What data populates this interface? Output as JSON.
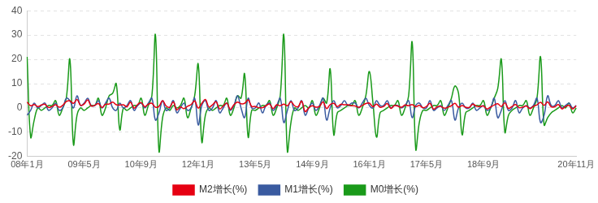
{
  "chart_data": {
    "type": "line",
    "categories": [
      "08年1月",
      null,
      null,
      null,
      null,
      null,
      null,
      null,
      null,
      null,
      null,
      null,
      null,
      null,
      null,
      null,
      "09年5月",
      null,
      null,
      null,
      null,
      null,
      null,
      null,
      null,
      null,
      null,
      null,
      null,
      null,
      null,
      null,
      "10年9月",
      null,
      null,
      null,
      null,
      null,
      null,
      null,
      null,
      null,
      null,
      null,
      null,
      null,
      null,
      null,
      "12年1月",
      null,
      null,
      null,
      null,
      null,
      null,
      null,
      null,
      null,
      null,
      null,
      null,
      null,
      null,
      null,
      "13年5月",
      null,
      null,
      null,
      null,
      null,
      null,
      null,
      null,
      null,
      null,
      null,
      null,
      null,
      null,
      null,
      "14年9月",
      null,
      null,
      null,
      null,
      null,
      null,
      null,
      null,
      null,
      null,
      null,
      null,
      null,
      null,
      null,
      "16年1月",
      null,
      null,
      null,
      null,
      null,
      null,
      null,
      null,
      null,
      null,
      null,
      null,
      null,
      null,
      null,
      "17年5月",
      null,
      null,
      null,
      null,
      null,
      null,
      null,
      null,
      null,
      null,
      null,
      null,
      null,
      null,
      null,
      "18年9月",
      null,
      null,
      null,
      null,
      null,
      null,
      null,
      null,
      null,
      null,
      null,
      null,
      null,
      null,
      null,
      null,
      null,
      null,
      null,
      null,
      null,
      null,
      null,
      null,
      null,
      "20年11月"
    ],
    "series": [
      {
        "name": "M2增长(%)",
        "color": "#e60012",
        "values": [
          2.4,
          0.9,
          1.4,
          0.6,
          1.2,
          1.5,
          0.2,
          0.6,
          1.3,
          0.3,
          1.1,
          2.6,
          2.9,
          1.9,
          3.5,
          1.1,
          1.6,
          3.3,
          0.8,
          1.1,
          1.8,
          0.2,
          1.5,
          1.6,
          2.4,
          1.3,
          1.2,
          1.3,
          0.5,
          2.4,
          -0.1,
          1.4,
          2.2,
          0.5,
          1.5,
          1.9,
          0.3,
          0.7,
          3.0,
          0.8,
          0.3,
          2.5,
          -0.8,
          0.4,
          -0.3,
          0.7,
          1.4,
          2.9,
          -0.1,
          1.9,
          3.5,
          0.4,
          1.3,
          2.5,
          -0.4,
          0.8,
          2.0,
          -0.6,
          1.3,
          2.4,
          1.7,
          1.9,
          3.3,
          0.6,
          0.6,
          0.1,
          0.1,
          0.9,
          1.6,
          -0.3,
          1.3,
          0.9,
          1.6,
          0.9,
          2.6,
          0.9,
          0.5,
          2.8,
          -1.5,
          0.1,
          0.9,
          0.3,
          0.6,
          2.5,
          -0.3,
          1.4,
          1.9,
          0.6,
          1.5,
          1.3,
          1.3,
          0.9,
          0.8,
          0.3,
          1.0,
          1.8,
          2.0,
          0.5,
          1.6,
          0.3,
          0.6,
          1.8,
          -0.2,
          1.0,
          0.7,
          0.3,
          1.2,
          0.9,
          1.4,
          0.5,
          1.1,
          0.1,
          0.6,
          1.9,
          -0.5,
          0.5,
          0.6,
          -0.1,
          0.3,
          0.9,
          1.9,
          0.3,
          1.0,
          0.3,
          0.2,
          1.6,
          0.7,
          0.6,
          0.8,
          -0.4,
          0.4,
          1.2,
          1.7,
          0.6,
          2.1,
          -0.2,
          0.6,
          1.4,
          0.1,
          0.3,
          0.8,
          -0.3,
          0.7,
          1.3,
          2.3,
          1.1,
          2.5,
          0.4,
          0.5,
          1.4,
          -0.4,
          0.6,
          1.0,
          -0.4,
          0.9
        ]
      },
      {
        "name": "M1增长(%)",
        "color": "#3a5ba0",
        "values": [
          -3,
          -1,
          2,
          0,
          1,
          2,
          -1,
          0,
          2,
          -1,
          0,
          4,
          3,
          0,
          5,
          1,
          2,
          4,
          1,
          1,
          3,
          0,
          2,
          4,
          0,
          -1,
          2,
          0,
          1,
          3,
          -1,
          1,
          2,
          0,
          2,
          4,
          -5,
          -2,
          3,
          -1,
          0,
          3,
          -2,
          0,
          2,
          -1,
          0,
          4,
          -7,
          1,
          3,
          -1,
          0,
          3,
          -2,
          0,
          2,
          -1,
          1,
          5,
          0,
          -4,
          4,
          0,
          0,
          2,
          -2,
          1,
          2,
          -1,
          1,
          4,
          -6,
          -1,
          3,
          -1,
          0,
          3,
          -3,
          0,
          2,
          -1,
          1,
          4,
          -5,
          0,
          3,
          0,
          1,
          3,
          1,
          2,
          2,
          0,
          2,
          4,
          1,
          0,
          3,
          1,
          1,
          3,
          0,
          1,
          1,
          0,
          1,
          3,
          -4,
          1,
          2,
          0,
          0,
          3,
          -1,
          0,
          1,
          -1,
          1,
          3,
          -5,
          0,
          2,
          0,
          0,
          2,
          -1,
          0,
          1,
          -1,
          0,
          4,
          -4,
          -1,
          3,
          -1,
          0,
          3,
          -2,
          0,
          1,
          0,
          1,
          4,
          -6,
          -3,
          5,
          1,
          1,
          3,
          0,
          1,
          2,
          0,
          1
        ]
      },
      {
        "name": "M0增长(%)",
        "color": "#1a9a1a",
        "values": [
          21,
          -12,
          -5,
          0,
          -1,
          0,
          1,
          1,
          3,
          -3,
          0,
          4,
          20,
          -15,
          -3,
          0,
          -1,
          0,
          1,
          1,
          4,
          -3,
          0,
          5,
          6,
          10,
          -9,
          0,
          -1,
          0,
          1,
          1,
          4,
          -3,
          1,
          5,
          30,
          -18,
          -4,
          0,
          -1,
          1,
          0,
          1,
          4,
          -4,
          0,
          5,
          18,
          -14,
          -3,
          0,
          -1,
          0,
          1,
          1,
          4,
          -3,
          0,
          5,
          4,
          14,
          -12,
          -1,
          -1,
          0,
          1,
          1,
          3,
          -3,
          0,
          5,
          30,
          -18,
          -6,
          0,
          -1,
          0,
          1,
          0,
          3,
          -3,
          0,
          4,
          2,
          16,
          -11,
          -2,
          -1,
          0,
          1,
          1,
          3,
          -3,
          0,
          5,
          15,
          2,
          -12,
          -2,
          -1,
          0,
          1,
          1,
          3,
          -3,
          0,
          5,
          27,
          -17,
          -6,
          -1,
          -1,
          0,
          1,
          1,
          3,
          -3,
          0,
          4,
          9,
          6,
          -11,
          -2,
          -1,
          0,
          1,
          1,
          3,
          -3,
          0,
          4,
          8,
          20,
          -10,
          -3,
          -1,
          0,
          1,
          1,
          3,
          -3,
          0,
          4,
          21,
          -7,
          -4,
          -2,
          -1,
          0,
          1,
          0,
          2,
          -2,
          0
        ]
      }
    ],
    "ylim": [
      -20,
      40
    ],
    "yticks": [
      -20,
      -10,
      0,
      10,
      20,
      30,
      40
    ],
    "grid": true,
    "legend": "bottom"
  }
}
